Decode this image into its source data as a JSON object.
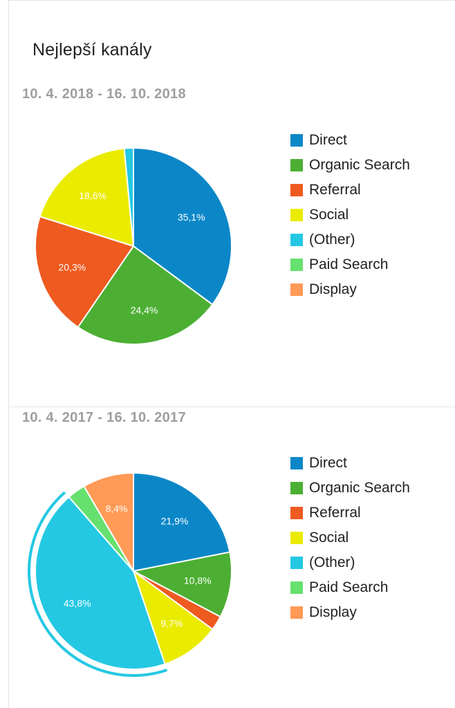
{
  "header": {
    "title": "Nejlepší kanály"
  },
  "colors": {
    "Direct": "#0b87c8",
    "Organic Search": "#4caf33",
    "Referral": "#ee5a1f",
    "Social": "#ebeb00",
    "(Other)": "#24c8e3",
    "Paid Search": "#66e06e",
    "Display": "#ff9a57"
  },
  "chart_data": [
    {
      "type": "pie",
      "date_range": "10. 4. 2018 - 16. 10. 2018",
      "categories": [
        "Direct",
        "Organic Search",
        "Referral",
        "Social",
        "(Other)",
        "Paid Search",
        "Display"
      ],
      "values": [
        35.1,
        24.4,
        20.3,
        18.6,
        1.5,
        0,
        0
      ],
      "labels": [
        "35,1%",
        "24,4%",
        "20,3%",
        "18,6%",
        "",
        "",
        ""
      ],
      "legend": [
        "Direct",
        "Organic Search",
        "Referral",
        "Social",
        "(Other)",
        "Paid Search",
        "Display"
      ],
      "legend_position": "right",
      "highlighted": null
    },
    {
      "type": "pie",
      "date_range": "10. 4. 2017 - 16. 10. 2017",
      "categories": [
        "Direct",
        "Organic Search",
        "Referral",
        "Social",
        "(Other)",
        "Paid Search",
        "Display"
      ],
      "values": [
        21.9,
        10.8,
        2.4,
        9.7,
        43.8,
        3.0,
        8.4
      ],
      "labels": [
        "21,9%",
        "10,8%",
        "",
        "9,7%",
        "43,8%",
        "",
        "8,4%"
      ],
      "legend": [
        "Direct",
        "Organic Search",
        "Referral",
        "Social",
        "(Other)",
        "Paid Search",
        "Display"
      ],
      "legend_position": "right",
      "highlighted": "(Other)"
    }
  ]
}
